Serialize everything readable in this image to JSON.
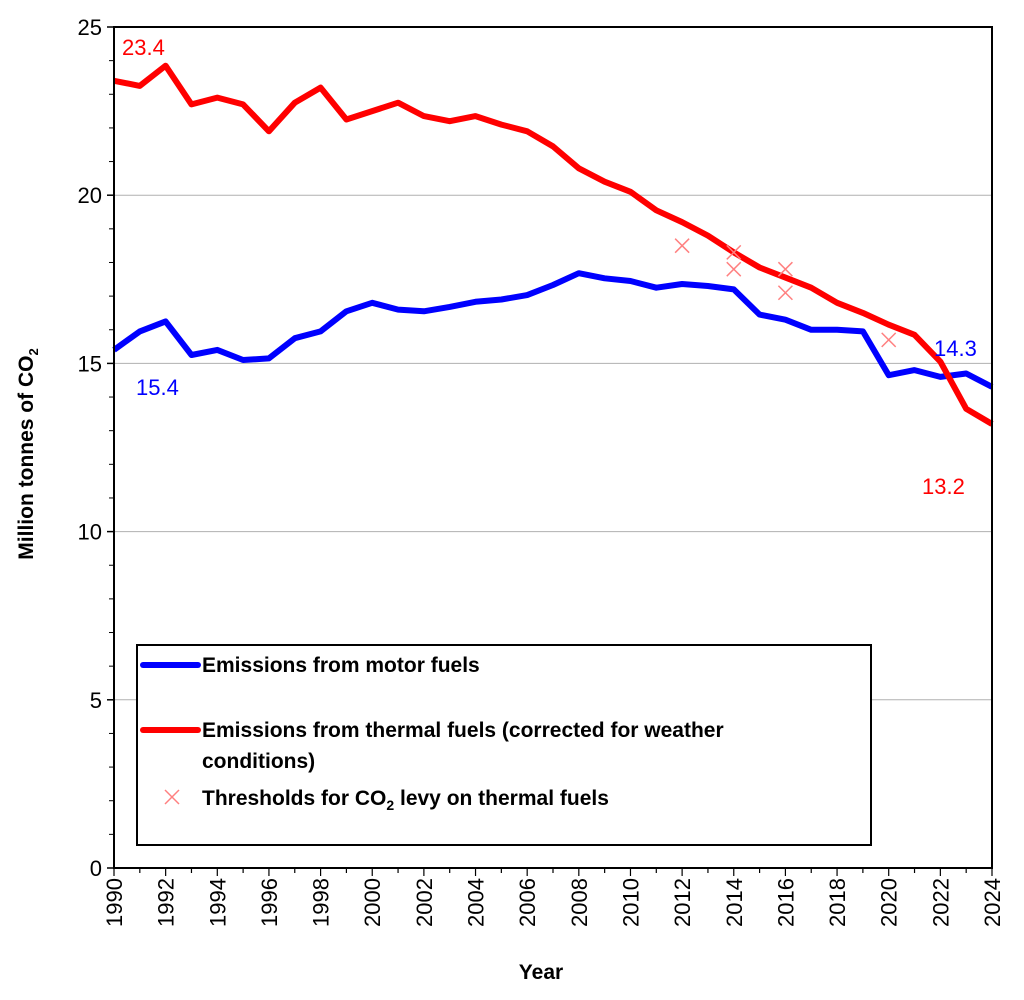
{
  "chart_data": {
    "type": "line",
    "title": "",
    "xlabel": "Year",
    "ylabel": "Million  tonnes of CO",
    "ylabel_subscript": "2",
    "xlim": [
      1990,
      2024
    ],
    "ylim": [
      0,
      25
    ],
    "grid": "horizontal major",
    "y_ticks": [
      "0",
      "5",
      "10",
      "15",
      "20",
      "25"
    ],
    "y_tick_values": [
      0,
      5,
      10,
      15,
      20,
      25
    ],
    "x_ticks": [
      "1990",
      "1992",
      "1994",
      "1996",
      "1998",
      "2000",
      "2002",
      "2004",
      "2006",
      "2008",
      "2010",
      "2012",
      "2014",
      "2016",
      "2018",
      "2020",
      "2022",
      "2024"
    ],
    "x_tick_values": [
      1990,
      1992,
      1994,
      1996,
      1998,
      2000,
      2002,
      2004,
      2006,
      2008,
      2010,
      2012,
      2014,
      2016,
      2018,
      2020,
      2022,
      2024
    ],
    "x": [
      1990,
      1991,
      1992,
      1993,
      1994,
      1995,
      1996,
      1997,
      1998,
      1999,
      2000,
      2001,
      2002,
      2003,
      2004,
      2005,
      2006,
      2007,
      2008,
      2009,
      2010,
      2011,
      2012,
      2013,
      2014,
      2015,
      2016,
      2017,
      2018,
      2019,
      2020,
      2021,
      2022,
      2023,
      2024
    ],
    "series": [
      {
        "name": "Emissions from motor fuels",
        "color": "#0000ff",
        "values": [
          15.4,
          15.95,
          16.25,
          15.25,
          15.4,
          15.1,
          15.15,
          15.75,
          15.95,
          16.55,
          16.8,
          16.6,
          16.55,
          16.68,
          16.83,
          16.9,
          17.03,
          17.33,
          17.68,
          17.53,
          17.45,
          17.25,
          17.36,
          17.3,
          17.2,
          16.45,
          16.3,
          16.0,
          16.0,
          15.95,
          14.65,
          14.8,
          14.6,
          14.7,
          14.3
        ]
      },
      {
        "name": "Emissions from thermal fuels (corrected for weather",
        "name_line2": "conditions)",
        "color": "#ff0000",
        "values": [
          23.4,
          23.25,
          23.85,
          22.7,
          22.9,
          22.7,
          21.9,
          22.75,
          23.2,
          22.25,
          22.5,
          22.75,
          22.35,
          22.2,
          22.35,
          22.1,
          21.9,
          21.45,
          20.8,
          20.4,
          20.1,
          19.55,
          19.2,
          18.8,
          18.3,
          17.85,
          17.55,
          17.25,
          16.8,
          16.5,
          16.15,
          15.85,
          15.05,
          13.65,
          13.2
        ]
      }
    ],
    "markers": {
      "name": "Thresholds for CO",
      "name_subscript": "2",
      "name_rest": " levy on thermal fuels",
      "color": "#ff8080",
      "points": [
        {
          "x": 2012,
          "y": 18.5
        },
        {
          "x": 2014,
          "y": 18.3
        },
        {
          "x": 2014,
          "y": 17.8
        },
        {
          "x": 2016,
          "y": 17.8
        },
        {
          "x": 2016,
          "y": 17.1
        },
        {
          "x": 2020,
          "y": 15.7
        }
      ]
    },
    "annotations": [
      {
        "text": "23.4",
        "series": 1,
        "x": 1990,
        "color": "#ff0000"
      },
      {
        "text": "15.4",
        "series": 0,
        "x": 1990,
        "color": "#0000ff"
      },
      {
        "text": "14.3",
        "series": 0,
        "x": 2024,
        "color": "#0000ff"
      },
      {
        "text": "13.2",
        "series": 1,
        "x": 2024,
        "color": "#ff0000"
      }
    ],
    "legend": "bottom-left"
  }
}
